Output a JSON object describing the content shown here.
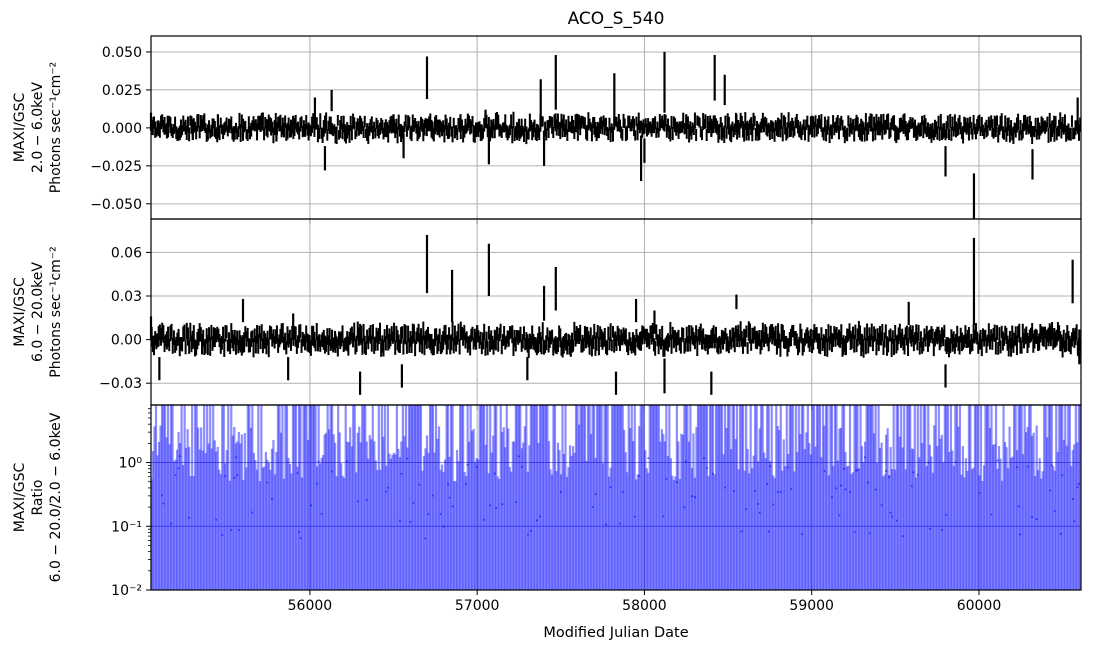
{
  "chart_data": {
    "type": "timeseries",
    "title": "ACO_S_540",
    "xlabel": "Modified Julian Date",
    "xlim": [
      55050,
      60610
    ],
    "x_ticks": [
      "56000",
      "57000",
      "58000",
      "59000",
      "60000"
    ],
    "grid": true,
    "panels": [
      {
        "kind": "errorbar",
        "ylabel": [
          "MAXI/GSC",
          "2.0 − 6.0keV",
          "Photons sec⁻¹cm⁻²"
        ],
        "ylim": [
          -0.06,
          0.0605
        ],
        "y_ticks": [
          0.05,
          0.025,
          0.0,
          -0.025,
          -0.05
        ],
        "y_tick_labels": [
          "0.050",
          "0.025",
          "0.000",
          "−0.025",
          "−0.050"
        ],
        "color": "#000000",
        "points": [
          [
            55050,
            0.004,
            0.006
          ],
          [
            55150,
            0.002,
            0.006
          ],
          [
            55300,
            -0.002,
            0.006
          ],
          [
            55450,
            0.003,
            0.006
          ],
          [
            55600,
            0.0,
            0.006
          ],
          [
            55800,
            -0.003,
            0.006
          ],
          [
            55900,
            0.002,
            0.006
          ],
          [
            56030,
            0.01,
            0.01
          ],
          [
            56090,
            -0.02,
            0.008
          ],
          [
            56130,
            0.018,
            0.007
          ],
          [
            56300,
            0.002,
            0.006
          ],
          [
            56500,
            0.003,
            0.006
          ],
          [
            56560,
            -0.012,
            0.008
          ],
          [
            56700,
            0.033,
            0.014
          ],
          [
            56900,
            0.003,
            0.006
          ],
          [
            57050,
            0.006,
            0.006
          ],
          [
            57070,
            -0.014,
            0.01
          ],
          [
            57250,
            0.0,
            0.006
          ],
          [
            57380,
            0.02,
            0.012
          ],
          [
            57400,
            -0.016,
            0.009
          ],
          [
            57470,
            0.03,
            0.018
          ],
          [
            57600,
            0.003,
            0.006
          ],
          [
            57820,
            0.022,
            0.014
          ],
          [
            57980,
            -0.02,
            0.015
          ],
          [
            58000,
            -0.015,
            0.008
          ],
          [
            58120,
            0.03,
            0.02
          ],
          [
            58250,
            0.003,
            0.006
          ],
          [
            58400,
            0.0,
            0.006
          ],
          [
            58420,
            0.033,
            0.015
          ],
          [
            58480,
            0.025,
            0.01
          ],
          [
            58550,
            0.003,
            0.006
          ],
          [
            58800,
            0.0,
            0.006
          ],
          [
            59000,
            0.002,
            0.006
          ],
          [
            59300,
            -0.003,
            0.006
          ],
          [
            59550,
            0.002,
            0.006
          ],
          [
            59800,
            -0.022,
            0.01
          ],
          [
            59970,
            -0.045,
            0.015
          ],
          [
            60100,
            0.0,
            0.006
          ],
          [
            60320,
            -0.024,
            0.01
          ],
          [
            60450,
            0.002,
            0.006
          ],
          [
            60590,
            0.01,
            0.01
          ]
        ]
      },
      {
        "kind": "errorbar",
        "ylabel": [
          "MAXI/GSC",
          "6.0 − 20.0keV",
          "Photons sec⁻¹cm⁻²"
        ],
        "ylim": [
          -0.045,
          0.083
        ],
        "y_ticks": [
          0.06,
          0.03,
          0.0,
          -0.03
        ],
        "y_tick_labels": [
          "0.06",
          "0.03",
          "0.00",
          "−0.03"
        ],
        "color": "#000000",
        "points": [
          [
            55050,
            0.008,
            0.008
          ],
          [
            55100,
            -0.02,
            0.008
          ],
          [
            55300,
            0.0,
            0.006
          ],
          [
            55600,
            0.02,
            0.008
          ],
          [
            55870,
            -0.02,
            0.008
          ],
          [
            55900,
            0.01,
            0.008
          ],
          [
            56150,
            0.0,
            0.006
          ],
          [
            56300,
            -0.03,
            0.008
          ],
          [
            56550,
            -0.025,
            0.008
          ],
          [
            56700,
            0.052,
            0.02
          ],
          [
            56850,
            0.03,
            0.018
          ],
          [
            57000,
            0.004,
            0.006
          ],
          [
            57070,
            0.048,
            0.018
          ],
          [
            57300,
            -0.02,
            0.008
          ],
          [
            57400,
            0.025,
            0.012
          ],
          [
            57470,
            0.035,
            0.015
          ],
          [
            57650,
            0.0,
            0.006
          ],
          [
            57830,
            -0.03,
            0.008
          ],
          [
            57950,
            0.02,
            0.008
          ],
          [
            58060,
            0.012,
            0.008
          ],
          [
            58120,
            -0.025,
            0.012
          ],
          [
            58400,
            -0.03,
            0.008
          ],
          [
            58550,
            0.026,
            0.005
          ],
          [
            58800,
            0.0,
            0.006
          ],
          [
            59300,
            -0.002,
            0.006
          ],
          [
            59580,
            0.018,
            0.008
          ],
          [
            59800,
            -0.025,
            0.008
          ],
          [
            59970,
            0.04,
            0.03
          ],
          [
            60200,
            0.0,
            0.006
          ],
          [
            60450,
            0.002,
            0.006
          ],
          [
            60560,
            0.04,
            0.015
          ],
          [
            60600,
            -0.005,
            0.012
          ]
        ]
      },
      {
        "kind": "ratio",
        "ylabel": [
          "MAXI/GSC",
          "Ratio",
          "6.0 − 20.0/2.0 − 6.0keV"
        ],
        "yscale": "log",
        "ylim": [
          0.01,
          8.0
        ],
        "y_ticks": [
          1,
          0.1,
          0.01
        ],
        "y_tick_labels": [
          "10⁰",
          "10⁻¹",
          "10⁻²"
        ],
        "color": "#0000ff",
        "bar_range": [
          0.01,
          8.0
        ]
      }
    ]
  }
}
